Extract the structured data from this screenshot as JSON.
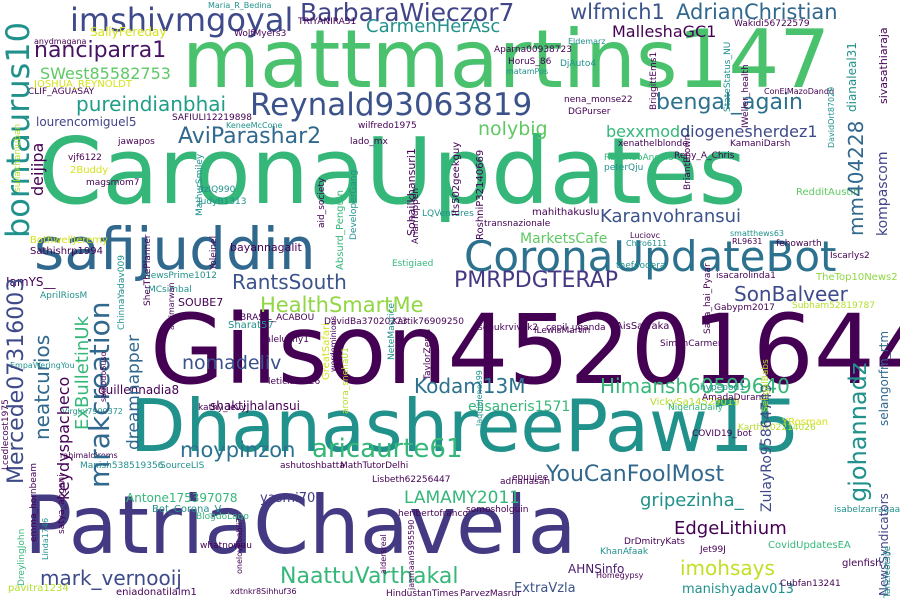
{
  "palette": {
    "dark_purple": "#440154",
    "indigo": "#3b528b",
    "blue": "#31688e",
    "teal": "#21918c",
    "green": "#35b779",
    "lime": "#5ec962",
    "yellow_green": "#90d743",
    "yellow": "#d5e21a"
  },
  "words": [
    {
      "text": "CaronaUpdates",
      "color": "#35b779"
    },
    {
      "text": "Gilson45201644",
      "color": "#440154"
    },
    {
      "text": "mattmartins147",
      "color": "#4ac16d"
    },
    {
      "text": "DhanashreePaw15",
      "color": "#21918c"
    },
    {
      "text": "PatriaChavela",
      "color": "#443a83"
    },
    {
      "text": "safijuddin",
      "color": "#31688e"
    },
    {
      "text": "CoronaUpdateBot",
      "color": "#2c728e"
    },
    {
      "text": "Reynald93063819",
      "color": "#3b528b"
    },
    {
      "text": "imshivmgoyal",
      "color": "#3e4a89"
    },
    {
      "text": "BarbaraWieczor7",
      "color": "#414487"
    },
    {
      "text": "wlfmich1",
      "color": "#3b528b"
    },
    {
      "text": "AdrianChristian",
      "color": "#31688e"
    },
    {
      "text": "nanciparra1",
      "color": "#471365"
    },
    {
      "text": "CarmenHerAsc",
      "color": "#21918c"
    },
    {
      "text": "MalleshaGC1",
      "color": "#440154"
    },
    {
      "text": "SWest85582753",
      "color": "#5ec962"
    },
    {
      "text": "pureindianbhai",
      "color": "#1f9e89"
    },
    {
      "text": "bengal_again",
      "color": "#2c728e"
    },
    {
      "text": "AviParashar2",
      "color": "#31688e"
    },
    {
      "text": "nolybig",
      "color": "#5ec962"
    },
    {
      "text": "bexxmodd",
      "color": "#35b779"
    },
    {
      "text": "diogenesherdez1",
      "color": "#3e4a89"
    },
    {
      "text": "lourencomiguel5",
      "color": "#414487"
    },
    {
      "text": "PMRPDGTERAP",
      "color": "#443a83"
    },
    {
      "text": "RantsSouth",
      "color": "#3b528b"
    },
    {
      "text": "SonBalveer",
      "color": "#3e4a89"
    },
    {
      "text": "HealthSmartMe",
      "color": "#90d743"
    },
    {
      "text": "Karanvohransui",
      "color": "#3b528b"
    },
    {
      "text": "MarketsCafe",
      "color": "#5ec962"
    },
    {
      "text": "nomadeliv",
      "color": "#3b528b"
    },
    {
      "text": "Kodam13M",
      "color": "#2c728e"
    },
    {
      "text": "Himansh60599640",
      "color": "#35b779"
    },
    {
      "text": "aricaurte61",
      "color": "#35b779"
    },
    {
      "text": "moypinzon",
      "color": "#2c728e"
    },
    {
      "text": "YouCanFoolMost",
      "color": "#31688e"
    },
    {
      "text": "gripezinha_",
      "color": "#21918c"
    },
    {
      "text": "LAMAMY2011",
      "color": "#35b779"
    },
    {
      "text": "EdgeLithium",
      "color": "#440154"
    },
    {
      "text": "mark_vernooij",
      "color": "#3e4a89"
    },
    {
      "text": "NaattuVarthakal",
      "color": "#35b779"
    },
    {
      "text": "imohsays",
      "color": "#c2df23"
    },
    {
      "text": "AHNSinfo",
      "color": "#481a6c"
    },
    {
      "text": "ExtraVzla",
      "color": "#3b528b"
    },
    {
      "text": "manishyadav013",
      "color": "#21918c"
    },
    {
      "text": "CovidUpdatesEA",
      "color": "#35b779"
    },
    {
      "text": "elisaneris1571",
      "color": "#35b779"
    },
    {
      "text": "shaktijhalansui",
      "color": "#440154"
    },
    {
      "text": "guillennadia8",
      "color": "#440154"
    },
    {
      "text": "Antone175397078",
      "color": "#35b779"
    },
    {
      "text": "yasmi70",
      "color": "#443a83"
    },
    {
      "text": "Bot_Corona_V",
      "color": "#21918c"
    },
    {
      "text": "Sathishrp1994",
      "color": "#440154"
    },
    {
      "text": "bayannagalit",
      "color": "#440154"
    },
    {
      "text": "SOUBE7",
      "color": "#440154"
    },
    {
      "text": "kathy_levy",
      "color": "#440154"
    },
    {
      "text": "ashutoshbatta",
      "color": "#440154"
    },
    {
      "text": "MathTutorDelhi",
      "color": "#440154"
    },
    {
      "text": "Lisbeth62256447",
      "color": "#440154"
    },
    {
      "text": "adrianasah",
      "color": "#440154"
    },
    {
      "text": "somosholguin",
      "color": "#440154"
    },
    {
      "text": "heribertofranco",
      "color": "#440154"
    },
    {
      "text": "HindustanTimes",
      "color": "#440154"
    },
    {
      "text": "ParvezMasrur",
      "color": "#440154"
    },
    {
      "text": "eniadonatilalm1",
      "color": "#440154"
    },
    {
      "text": "pavitra1234",
      "color": "#b5de2b"
    },
    {
      "text": "AisSawaka",
      "color": "#440154"
    },
    {
      "text": "sonukrvivek2",
      "color": "#440154"
    },
    {
      "text": "cepil_uganda",
      "color": "#440154"
    },
    {
      "text": "wilfredo1975",
      "color": "#440154"
    },
    {
      "text": "lado_mx",
      "color": "#440154"
    },
    {
      "text": "nena_monse22",
      "color": "#440154"
    },
    {
      "text": "DGPurser",
      "color": "#440154"
    },
    {
      "text": "mahithakuslu",
      "color": "#440154"
    },
    {
      "text": "transnazionale",
      "color": "#440154"
    },
    {
      "text": "LQVentures",
      "color": "#21918c"
    },
    {
      "text": "fehowarth",
      "color": "#440154"
    },
    {
      "text": "Iscarlys2",
      "color": "#440154"
    },
    {
      "text": "KamaniDarsh",
      "color": "#440154"
    },
    {
      "text": "isacarolinda1",
      "color": "#440154"
    },
    {
      "text": "TheTop10News2",
      "color": "#90d743"
    },
    {
      "text": "Subham52819787",
      "color": "#b5de2b"
    },
    {
      "text": "SimonCarmen",
      "color": "#440154"
    },
    {
      "text": "Sharat57",
      "color": "#21918c"
    },
    {
      "text": "NewsPrime1012",
      "color": "#21918c"
    },
    {
      "text": "Valeluchy1",
      "color": "#440154"
    },
    {
      "text": "DavidBa37020273",
      "color": "#440154"
    },
    {
      "text": "Kartik76909250",
      "color": "#440154"
    },
    {
      "text": "iLewisMartin",
      "color": "#440154"
    },
    {
      "text": "leticiaost26",
      "color": "#440154"
    },
    {
      "text": "IamYS__",
      "color": "#440154"
    },
    {
      "text": "AprilRiosM",
      "color": "#21918c"
    },
    {
      "text": "MCsimbal",
      "color": "#21918c"
    },
    {
      "text": "BRASIL_ACABOU",
      "color": "#440154"
    },
    {
      "text": "VickySa14529019",
      "color": "#b5de2b"
    },
    {
      "text": "NigeriaDaily",
      "color": "#35b779"
    },
    {
      "text": "hypepod1",
      "color": "#21918c"
    },
    {
      "text": "AmadaDuran8",
      "color": "#440154"
    },
    {
      "text": "YRosman",
      "color": "#d5e21a"
    },
    {
      "text": "Karthik02214026",
      "color": "#b5de2b"
    },
    {
      "text": "Gabypm2017",
      "color": "#440154"
    },
    {
      "text": "COVID19_bot",
      "color": "#440154"
    },
    {
      "text": "epuujee",
      "color": "#440154"
    },
    {
      "text": "Manish538519356",
      "color": "#21918c"
    },
    {
      "text": "SourceLIS",
      "color": "#21918c"
    },
    {
      "text": "BlogdoLago",
      "color": "#35b779"
    },
    {
      "text": "whatnowau",
      "color": "#440154"
    },
    {
      "text": "jawapos",
      "color": "#440154"
    },
    {
      "text": "vjf6122",
      "color": "#440154"
    },
    {
      "text": "2Buddy",
      "color": "#d5e21a"
    },
    {
      "text": "magsmom7",
      "color": "#440154"
    },
    {
      "text": "BothwellJeremy",
      "color": "#d5e21a"
    },
    {
      "text": "dzIQ990",
      "color": "#21918c"
    },
    {
      "text": "JudyB1313",
      "color": "#21918c"
    },
    {
      "text": "SAFIULI12219898",
      "color": "#440154"
    },
    {
      "text": "KeneeMcCone",
      "color": "#21918c"
    },
    {
      "text": "SallyFereday",
      "color": "#d5e21a"
    },
    {
      "text": "Maria_R_Bedina",
      "color": "#21918c"
    },
    {
      "text": "WolfMyers3",
      "color": "#440154"
    },
    {
      "text": "TRIYANIRA31",
      "color": "#440154"
    },
    {
      "text": "anydmagana",
      "color": "#440154"
    },
    {
      "text": "CLIF_AGUASAY",
      "color": "#440154"
    },
    {
      "text": "JOSHUA_REYNOLDT",
      "color": "#d5e21a"
    },
    {
      "text": "Aparna00938723",
      "color": "#440154"
    },
    {
      "text": "Eldemarz",
      "color": "#21918c"
    },
    {
      "text": "Wakidi56722579",
      "color": "#440154"
    },
    {
      "text": "ConElMazoDando",
      "color": "#440154"
    },
    {
      "text": "HoruS_86",
      "color": "#440154"
    },
    {
      "text": "DjAuto4",
      "color": "#21918c"
    },
    {
      "text": "matamPos",
      "color": "#21918c"
    },
    {
      "text": "xenathelblonde",
      "color": "#440154"
    },
    {
      "text": "RosendoAngel3",
      "color": "#35b779"
    },
    {
      "text": "peterQju",
      "color": "#21918c"
    },
    {
      "text": "Reny_A_Chris",
      "color": "#440154"
    },
    {
      "text": "Luciovc",
      "color": "#440154"
    },
    {
      "text": "Chiro6111",
      "color": "#21918c"
    },
    {
      "text": "smatthews63",
      "color": "#21918c"
    },
    {
      "text": "RL9631",
      "color": "#440154"
    },
    {
      "text": "RedditAustin",
      "color": "#5ec962"
    },
    {
      "text": "thefoodera",
      "color": "#21918c"
    },
    {
      "text": "EmpaWeringYou",
      "color": "#21918c"
    },
    {
      "text": "Estigiaed",
      "color": "#35b779"
    },
    {
      "text": "Virgini7900372",
      "color": "#21918c"
    },
    {
      "text": "rahimaldiroms",
      "color": "#440154"
    },
    {
      "text": "isabelzarragaa",
      "color": "#21918c"
    },
    {
      "text": "Jet99J",
      "color": "#440154"
    },
    {
      "text": "KhanAfaak",
      "color": "#21918c"
    },
    {
      "text": "DrDmitryKats",
      "color": "#440154"
    },
    {
      "text": "Homegypsy",
      "color": "#440154"
    },
    {
      "text": "glenfish",
      "color": "#440154"
    },
    {
      "text": "Cubfan13241",
      "color": "#440154"
    },
    {
      "text": "xdtnkr8Sihhuf36",
      "color": "#440154"
    },
    {
      "text": "jaamaan9395590",
      "color": "#440154"
    },
    {
      "text": "laquialenes99",
      "color": "#21918c"
    },
    {
      "text": "Linda1746",
      "color": "#21918c"
    },
    {
      "text": "DreylingJohn",
      "color": "#35b779"
    },
    {
      "text": "borntaurus10",
      "color": "#21918c"
    },
    {
      "text": "Mercede07316003",
      "color": "#3e4a89"
    },
    {
      "text": "mrakcreation",
      "color": "#31688e"
    },
    {
      "text": "neatcurios",
      "color": "#31688e"
    },
    {
      "text": "ExBulletinUk",
      "color": "#35b779"
    },
    {
      "text": "dreamnapper",
      "color": "#31688e"
    },
    {
      "text": "keydyspacheco",
      "color": "#440154"
    },
    {
      "text": "mm404228",
      "color": "#31688e"
    },
    {
      "text": "kompascom",
      "color": "#414487"
    },
    {
      "text": "gjohannadz",
      "color": "#21918c"
    },
    {
      "text": "selangorfm_rtm",
      "color": "#31688e"
    },
    {
      "text": "ZulayRo9586474​9",
      "color": "#3e4a89"
    },
    {
      "text": "NewsSyndicators",
      "color": "#414487"
    },
    {
      "text": "deijipa",
      "color": "#440154"
    },
    {
      "text": "Sohailkhansuri1",
      "color": "#440154"
    },
    {
      "text": "Its502geekguy",
      "color": "#440154"
    },
    {
      "text": "RoshniP32140669",
      "color": "#440154"
    },
    {
      "text": "ArianTuppen",
      "color": "#440154"
    },
    {
      "text": "Absurd_Penguin",
      "color": "#35b779"
    },
    {
      "text": "DeveloperGang",
      "color": "#21918c"
    },
    {
      "text": "aid_society",
      "color": "#440154"
    },
    {
      "text": "MathurSmiley",
      "color": "#21918c"
    },
    {
      "text": "sullakhaniuban",
      "color": "#b5de2b"
    },
    {
      "text": "Yoleinel",
      "color": "#440154"
    },
    {
      "text": "SherThePlanner",
      "color": "#440154"
    },
    {
      "text": "ChinnaYadav009",
      "color": "#21918c"
    },
    {
      "text": "afdimarwan",
      "color": "#440154"
    },
    {
      "text": "GreatSafari",
      "color": "#d5e21a"
    },
    {
      "text": "wordeminions",
      "color": "#440154"
    },
    {
      "text": "arora_sneha01",
      "color": "#b5de2b"
    },
    {
      "text": "NeteMaurice",
      "color": "#21918c"
    },
    {
      "text": "TaylorZerra",
      "color": "#440154"
    },
    {
      "text": "sadiodoSuso",
      "color": "#440154"
    },
    {
      "text": "satya_angani",
      "color": "#440154"
    },
    {
      "text": "onelovebabii7",
      "color": "#440154"
    },
    {
      "text": "aldersreal",
      "color": "#440154"
    },
    {
      "text": "BriggittEms1",
      "color": "#440154"
    },
    {
      "text": "StateStatus_NU",
      "color": "#21918c"
    },
    {
      "text": "BriantBrown",
      "color": "#440154"
    },
    {
      "text": "IWeller_health",
      "color": "#440154"
    },
    {
      "text": "DavidOrt87029",
      "color": "#21918c"
    },
    {
      "text": "dianaleal31",
      "color": "#21918c"
    },
    {
      "text": "sivasathiaraja",
      "color": "#440154"
    },
    {
      "text": "Sana_hai_Pyaar",
      "color": "#440154"
    },
    {
      "text": "SehgalBabs",
      "color": "#b5de2b"
    },
    {
      "text": "Lcedlecost1975",
      "color": "#440154"
    },
    {
      "text": "emma_hornbeam",
      "color": "#440154"
    },
    {
      "text": "Tanzieotsile",
      "color": "#21918c"
    }
  ]
}
